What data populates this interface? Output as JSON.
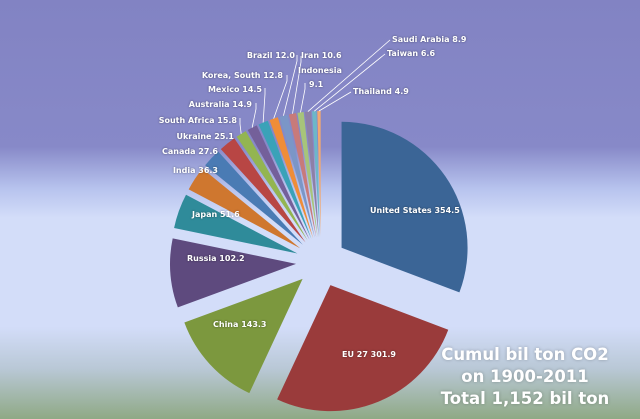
{
  "chart_data": {
    "type": "pie",
    "title_lines": [
      "Cumul bil ton CO2",
      "on 1900-2011",
      "Total 1,152 bil ton"
    ],
    "unit": "bil ton CO2",
    "slices": [
      {
        "label": "United States",
        "value": 354.5,
        "color": "#3b6596"
      },
      {
        "label": "EU 27",
        "value": 301.9,
        "color": "#9a3b3b"
      },
      {
        "label": "China",
        "value": 143.3,
        "color": "#7c983e"
      },
      {
        "label": "Russia",
        "value": 102.2,
        "color": "#5e4a7e"
      },
      {
        "label": "Japan",
        "value": 51.6,
        "color": "#2f8b9a"
      },
      {
        "label": "India",
        "value": 36.3,
        "color": "#cf772f"
      },
      {
        "label": "Canada",
        "value": 27.6,
        "color": "#4a7bb4"
      },
      {
        "label": "Ukraine",
        "value": 25.1,
        "color": "#b84644"
      },
      {
        "label": "South Africa",
        "value": 15.8,
        "color": "#93b551"
      },
      {
        "label": "Australia",
        "value": 14.9,
        "color": "#74609a"
      },
      {
        "label": "Mexico",
        "value": 14.5,
        "color": "#3aa2b8"
      },
      {
        "label": "Korea, South",
        "value": 12.8,
        "color": "#ef8d38"
      },
      {
        "label": "Brazil",
        "value": 12.0,
        "color": "#7b96c7"
      },
      {
        "label": "Iran",
        "value": 10.6,
        "color": "#c87a7a"
      },
      {
        "label": "Indonesia",
        "value": 9.1,
        "color": "#a7c47a"
      },
      {
        "label": "Saudi Arabia",
        "value": 8.9,
        "color": "#8d80a8"
      },
      {
        "label": "Taiwan",
        "value": 6.6,
        "color": "#6db7c9"
      },
      {
        "label": "Thailand",
        "value": 4.9,
        "color": "#f2a870"
      }
    ],
    "data_labels": [
      "United States 354.5",
      "EU 27 301.9",
      "China 143.3",
      "Russia 102.2",
      "Japan 51.6",
      "India 36.3",
      "Canada 27.6",
      "Ukraine 25.1",
      "South Africa 15.8",
      "Australia 14.9",
      "Mexico 14.5",
      "Korea, South 12.8",
      "Brazil 12.0",
      "Iran 10.6",
      "Indonesia",
      "Saudi Arabia 8.9",
      "Taiwan 6.6",
      "Thailand 4.9"
    ],
    "indonesia_value_label": "9.1",
    "exploded": true,
    "legend": "none"
  }
}
